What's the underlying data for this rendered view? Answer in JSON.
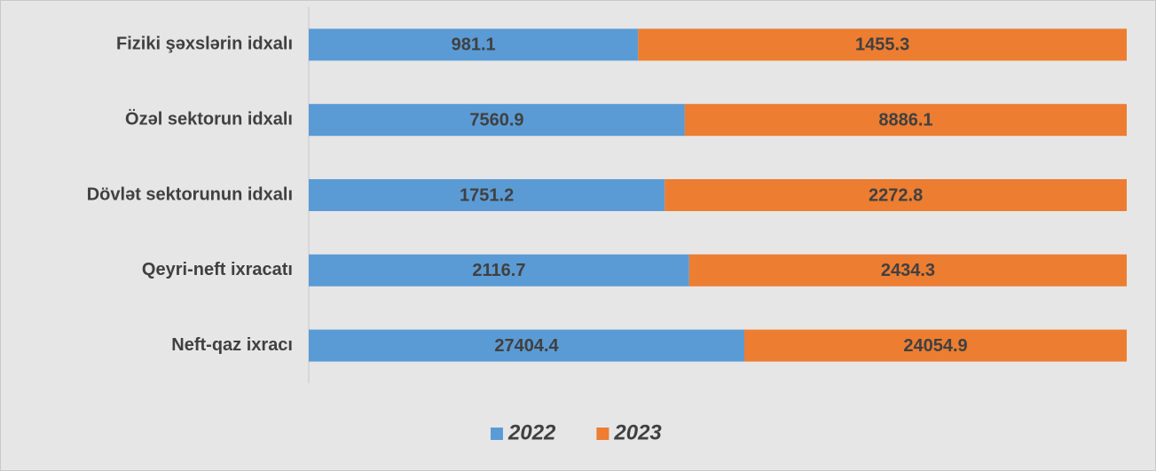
{
  "chart_data": {
    "type": "bar",
    "orientation": "horizontal",
    "stacked": true,
    "normalized": true,
    "categories": [
      "Fiziki şəxslərin idxalı",
      "Özəl sektorun idxalı",
      "Dövlət sektorunun idxalı",
      "Qeyri-neft ixracatı",
      "Neft-qaz ixracı"
    ],
    "series": [
      {
        "name": "2022",
        "color": "#5b9bd5",
        "values": [
          981.1,
          7560.9,
          1751.2,
          2116.7,
          27404.4
        ]
      },
      {
        "name": "2023",
        "color": "#ed7d31",
        "values": [
          1455.3,
          8886.1,
          2272.8,
          2434.3,
          24054.9
        ]
      }
    ],
    "legend": "bottom"
  }
}
